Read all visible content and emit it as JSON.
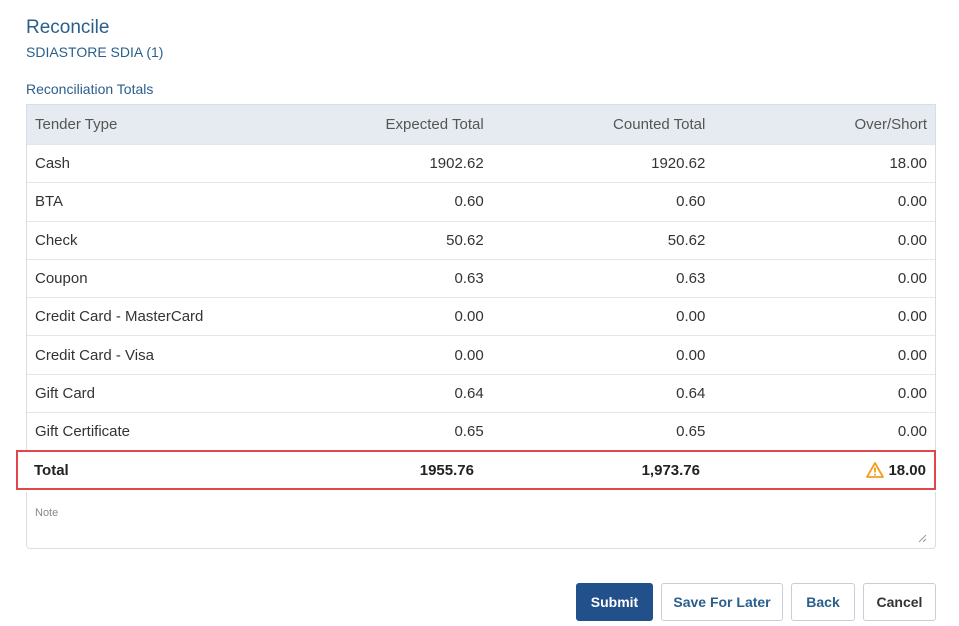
{
  "header": {
    "title": "Reconcile",
    "subtitle": "SDIASTORE SDIA (1)",
    "section_title": "Reconciliation Totals"
  },
  "table": {
    "columns": [
      "Tender Type",
      "Expected Total",
      "Counted Total",
      "Over/Short"
    ],
    "rows": [
      {
        "tender": "Cash",
        "expected": "1902.62",
        "counted": "1920.62",
        "over_short": "18.00"
      },
      {
        "tender": "BTA",
        "expected": "0.60",
        "counted": "0.60",
        "over_short": "0.00"
      },
      {
        "tender": "Check",
        "expected": "50.62",
        "counted": "50.62",
        "over_short": "0.00"
      },
      {
        "tender": "Coupon",
        "expected": "0.63",
        "counted": "0.63",
        "over_short": "0.00"
      },
      {
        "tender": "Credit Card - MasterCard",
        "expected": "0.00",
        "counted": "0.00",
        "over_short": "0.00"
      },
      {
        "tender": "Credit Card - Visa",
        "expected": "0.00",
        "counted": "0.00",
        "over_short": "0.00"
      },
      {
        "tender": "Gift Card",
        "expected": "0.64",
        "counted": "0.64",
        "over_short": "0.00"
      },
      {
        "tender": "Gift Certificate",
        "expected": "0.65",
        "counted": "0.65",
        "over_short": "0.00"
      }
    ],
    "total": {
      "label": "Total",
      "expected": "1955.76",
      "counted": "1,973.76",
      "over_short": "18.00",
      "warning_icon": "warning-triangle-icon"
    }
  },
  "note": {
    "label": "Note",
    "value": ""
  },
  "buttons": {
    "submit": "Submit",
    "save_for_later": "Save For Later",
    "back": "Back",
    "cancel": "Cancel"
  },
  "colors": {
    "title": "#2a5e8c",
    "primary_button": "#22508a",
    "highlight_border": "#e0474c",
    "warning": "#f0a020"
  }
}
